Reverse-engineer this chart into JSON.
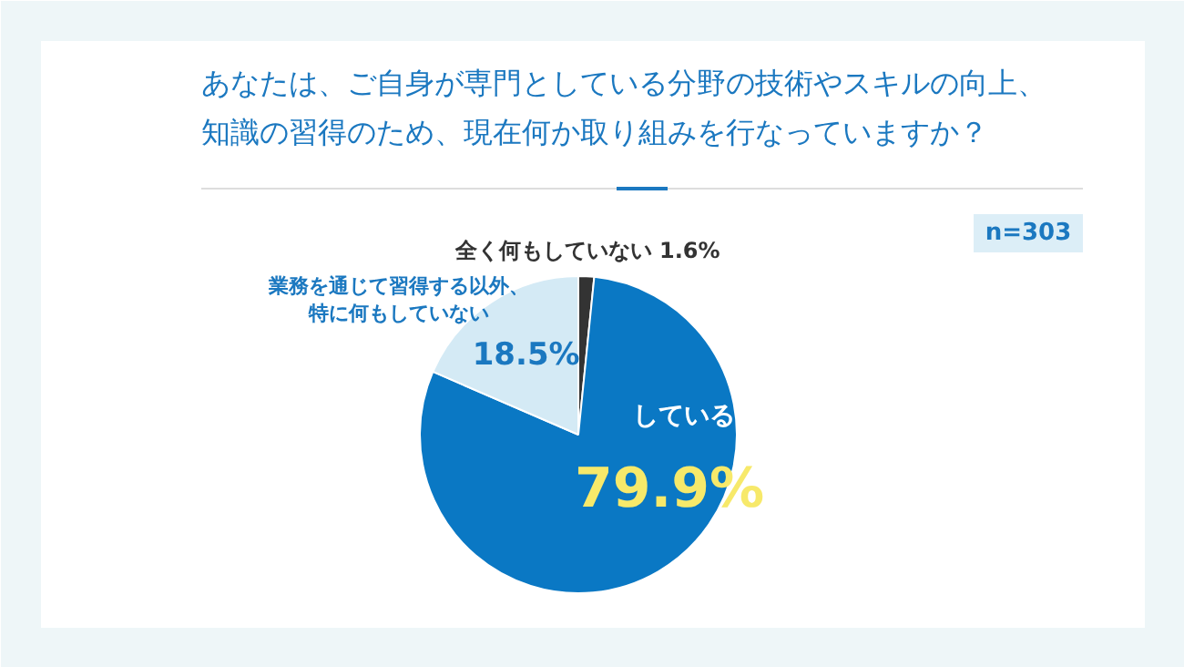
{
  "chart_data": {
    "type": "pie",
    "title": "あなたは、ご自身が専門としている分野の技術やスキルの向上、知識の習得のため、現在何か取り組みを行なっていますか？",
    "categories": [
      "全く何もしていない",
      "している",
      "業務を通じて習得する以外、特に何もしていない"
    ],
    "values": [
      1.6,
      79.9,
      18.5
    ],
    "colors": [
      "#333333",
      "#0a78c4",
      "#d4eaf5"
    ],
    "value_labels": [
      "1.6%",
      "79.9%",
      "18.5%"
    ],
    "annotations": [
      "n=303"
    ]
  }
}
